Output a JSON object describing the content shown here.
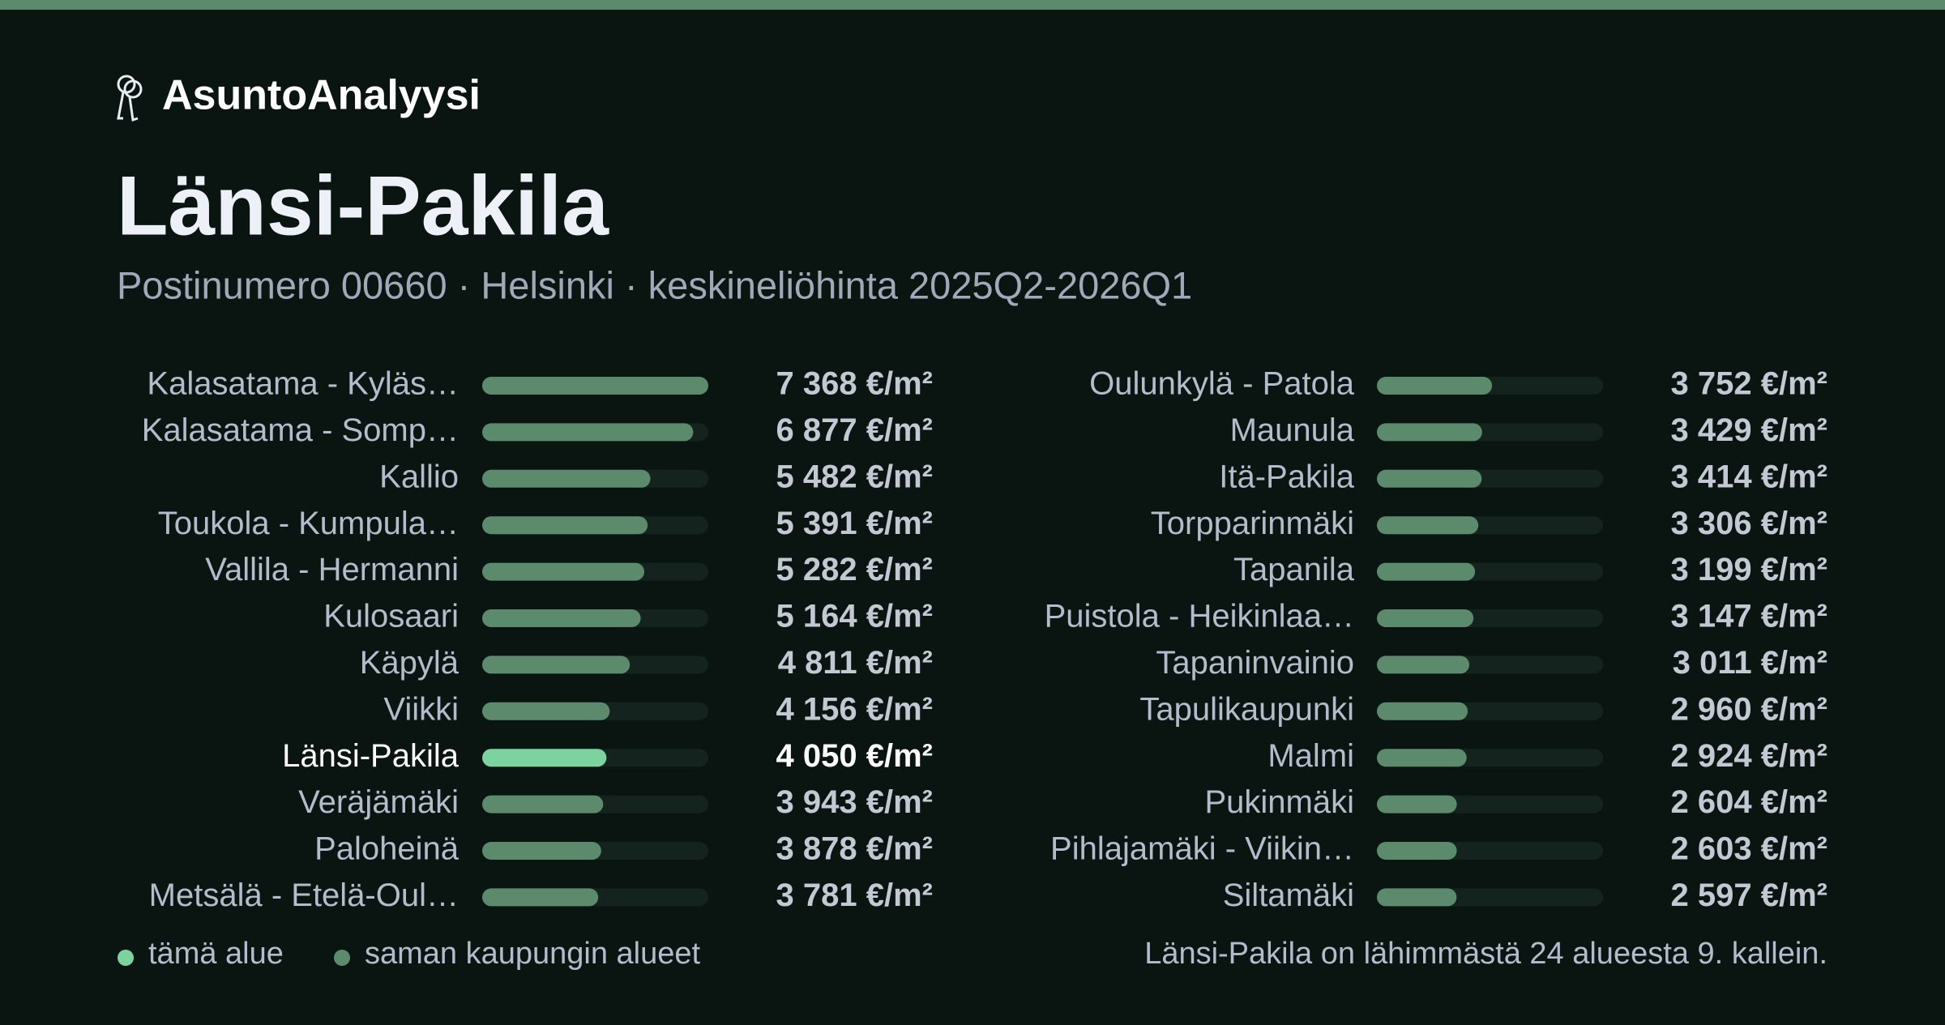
{
  "brand": "AsuntoAnalyysi",
  "chart_data": {
    "type": "bar",
    "title": "Länsi-Pakila",
    "subtitle": "Postinumero 00660 · Helsinki · keskineliöhinta 2025Q2-2026Q1",
    "categories": [
      "Kalasatama - Kyläs…",
      "Kalasatama - Somp…",
      "Kallio",
      "Toukola - Kumpula…",
      "Vallila - Hermanni",
      "Kulosaari",
      "Käpylä",
      "Viikki",
      "Länsi-Pakila",
      "Veräjämäki",
      "Paloheinä",
      "Metsälä - Etelä-Oul…",
      "Oulunkylä - Patola",
      "Maunula",
      "Itä-Pakila",
      "Torpparinmäki",
      "Tapanila",
      "Puistola - Heikinlaa…",
      "Tapaninvainio",
      "Tapulikaupunki",
      "Malmi",
      "Pukinmäki",
      "Pihlajamäki - Viikin…",
      "Siltamäki"
    ],
    "series": [
      {
        "name": "tämä alue",
        "color": "#7dd3a0",
        "values": [
          null,
          null,
          null,
          null,
          null,
          null,
          null,
          null,
          4050,
          null,
          null,
          null,
          null,
          null,
          null,
          null,
          null,
          null,
          null,
          null,
          null,
          null,
          null,
          null
        ],
        "value_labels": [
          null,
          null,
          null,
          null,
          null,
          null,
          null,
          null,
          "4 050 €/m²",
          null,
          null,
          null,
          null,
          null,
          null,
          null,
          null,
          null,
          null,
          null,
          null,
          null,
          null,
          null
        ]
      },
      {
        "name": "saman kaupungin alueet",
        "color": "#5c8a6c",
        "values": [
          7368,
          6877,
          5482,
          5391,
          5282,
          5164,
          4811,
          4156,
          null,
          3943,
          3878,
          3781,
          3752,
          3429,
          3414,
          3306,
          3199,
          3147,
          3011,
          2960,
          2924,
          2604,
          2603,
          2597
        ],
        "value_labels": [
          "7 368 €/m²",
          "6 877 €/m²",
          "5 482 €/m²",
          "5 391 €/m²",
          "5 282 €/m²",
          "5 164 €/m²",
          "4 811 €/m²",
          "4 156 €/m²",
          null,
          "3 943 €/m²",
          "3 878 €/m²",
          "3 781 €/m²",
          "3 752 €/m²",
          "3 429 €/m²",
          "3 414 €/m²",
          "3 306 €/m²",
          "3 199 €/m²",
          "3 147 €/m²",
          "3 011 €/m²",
          "2 960 €/m²",
          "2 924 €/m²",
          "2 604 €/m²",
          "2 603 €/m²",
          "2 597 €/m²"
        ]
      }
    ],
    "note": "Länsi-Pakila on lähimmästä 24 alueesta 9. kallein."
  }
}
